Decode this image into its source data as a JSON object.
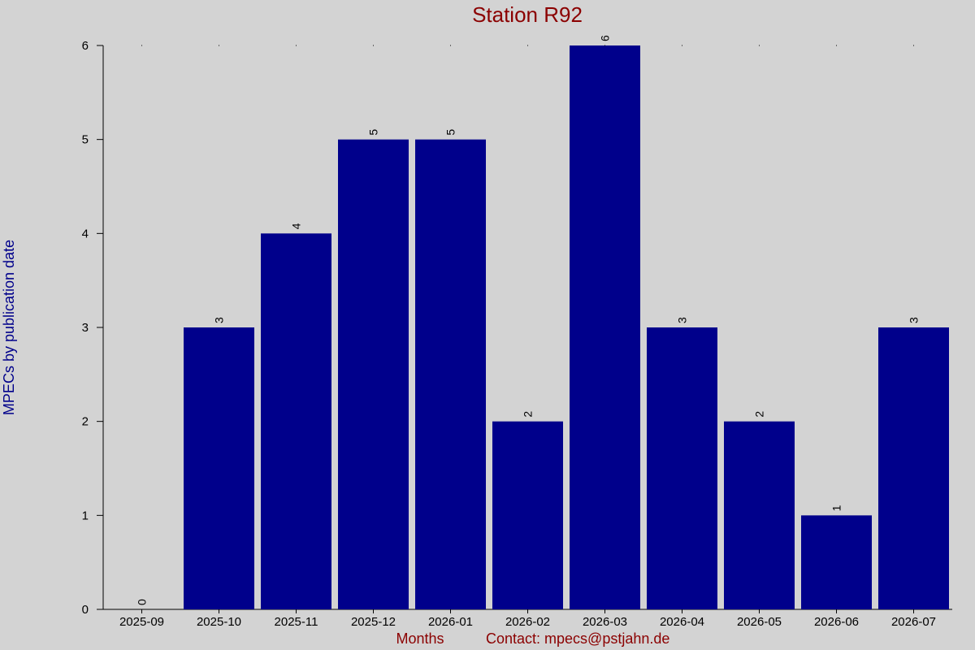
{
  "chart_data": {
    "type": "bar",
    "title": "Station R92",
    "xlabel": "Months",
    "ylabel": "MPECs by publication date",
    "footer": "Contact: mpecs@pstjahn.de",
    "categories": [
      "2025-09",
      "2025-10",
      "2025-11",
      "2025-12",
      "2026-01",
      "2026-02",
      "2026-03",
      "2026-04",
      "2026-05",
      "2026-06",
      "2026-07"
    ],
    "values": [
      0,
      3,
      4,
      5,
      5,
      2,
      6,
      3,
      2,
      1,
      3
    ],
    "ylim": [
      0,
      6
    ],
    "yticks": [
      0,
      1,
      2,
      3,
      4,
      5,
      6
    ],
    "grid": false,
    "colors": {
      "bar": "#00008b",
      "title": "#8b0000",
      "xlabel": "#8b0000",
      "ylabel": "#00008b",
      "axis": "#000000"
    }
  }
}
